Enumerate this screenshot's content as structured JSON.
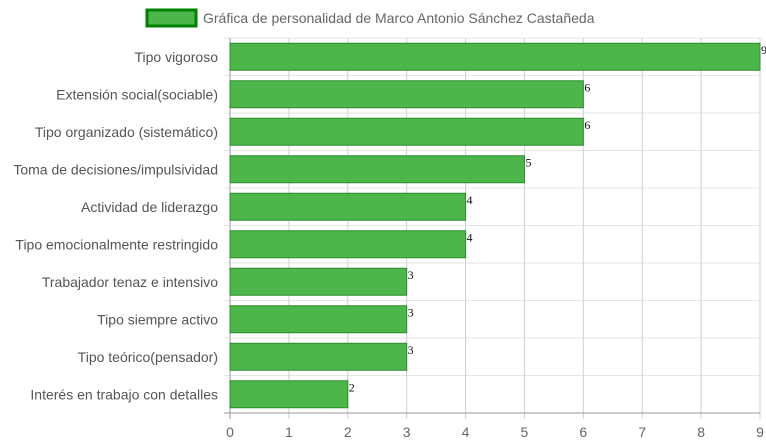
{
  "chart_data": {
    "type": "bar",
    "orientation": "horizontal",
    "title": "",
    "categories": [
      "Tipo vigoroso",
      "Extensión social(sociable)",
      "Tipo organizado (sistemático)",
      "Toma de decisiones/impulsividad",
      "Actividad de liderazgo",
      "Tipo emocionalmente restringido",
      "Trabajador tenaz e intensivo",
      "Tipo siempre activo",
      "Tipo teórico(pensador)",
      "Interés en trabajo con detalles"
    ],
    "series": [
      {
        "name": "Gráfica de personalidad de Marco Antonio Sánchez Castañeda",
        "values": [
          9,
          6,
          6,
          5,
          4,
          4,
          3,
          3,
          3,
          2
        ]
      }
    ],
    "xlim": [
      0,
      9
    ],
    "xticks": [
      "0",
      "1",
      "2",
      "3",
      "4",
      "5",
      "6",
      "7",
      "8",
      "9"
    ],
    "xlabel": "",
    "ylabel": "",
    "grid": true,
    "legend_position": "top",
    "data_labels": true,
    "colors": {
      "bar_fill": "#4db64b",
      "bar_border": "#2e8b2e",
      "legend_fill": "#4db64b",
      "legend_border": "#008000",
      "grid": "#e5e5e5",
      "axis": "#999999"
    }
  }
}
